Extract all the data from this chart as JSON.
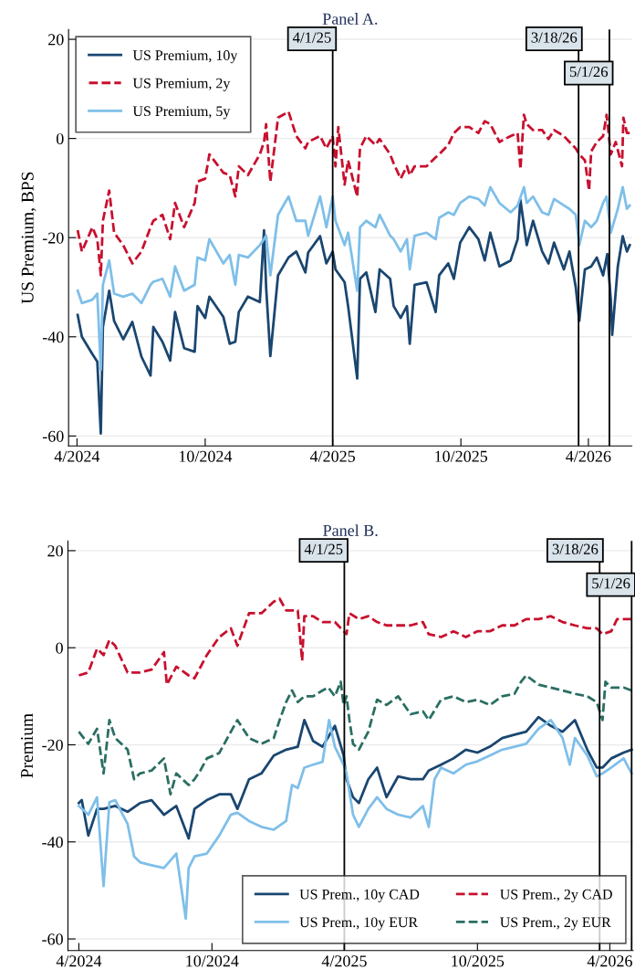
{
  "chart_data": [
    {
      "type": "line",
      "title": "Panel A.",
      "ylabel": "US Premium, BPS",
      "xlim": [
        "2024-03-20",
        "2026-06-02"
      ],
      "ylim": [
        -62,
        22
      ],
      "xticks": [
        {
          "value": "2024-04-01",
          "label": "4/2024"
        },
        {
          "value": "2024-10-01",
          "label": "10/2024"
        },
        {
          "value": "2025-04-01",
          "label": "4/2025"
        },
        {
          "value": "2025-10-01",
          "label": "10/2025"
        },
        {
          "value": "2026-04-01",
          "label": "4/2026"
        }
      ],
      "yticks": [
        20,
        0,
        -20,
        -40,
        -60
      ],
      "grid": "y",
      "legend": "top left",
      "ref_lines": [
        {
          "axis": "x",
          "value": "2025-04-01",
          "label": "4/1/25",
          "color": "#000000"
        },
        {
          "axis": "x",
          "value": "2026-03-18",
          "label": "3/18/26",
          "color": "#000000"
        },
        {
          "axis": "x",
          "value": "2026-05-01",
          "label": "5/1/26",
          "color": "#000000"
        }
      ],
      "series": [
        {
          "name": "US Premium, 10y",
          "color": "#1a4670",
          "line_style": "solid",
          "x": [
            "2024-04-02",
            "2024-04-08",
            "2024-04-23",
            "2024-04-30",
            "2024-05-05",
            "2024-05-08",
            "2024-05-17",
            "2024-05-24",
            "2024-06-06",
            "2024-06-19",
            "2024-07-02",
            "2024-07-15",
            "2024-07-19",
            "2024-08-01",
            "2024-08-12",
            "2024-08-19",
            "2024-09-01",
            "2024-09-16",
            "2024-09-20",
            "2024-10-01",
            "2024-10-07",
            "2024-10-27",
            "2024-11-05",
            "2024-11-13",
            "2024-11-18",
            "2024-12-01",
            "2024-12-18",
            "2024-12-24",
            "2024-12-27",
            "2025-01-02",
            "2025-01-13",
            "2025-01-28",
            "2025-02-08",
            "2025-02-21",
            "2025-02-25",
            "2025-03-14",
            "2025-03-23",
            "2025-04-01",
            "2025-04-05",
            "2025-04-18",
            "2025-04-23",
            "2025-05-06",
            "2025-05-10",
            "2025-05-19",
            "2025-06-01",
            "2025-06-07",
            "2025-06-22",
            "2025-06-27",
            "2025-07-07",
            "2025-07-16",
            "2025-07-20",
            "2025-07-27",
            "2025-08-13",
            "2025-08-26",
            "2025-08-31",
            "2025-09-13",
            "2025-09-21",
            "2025-09-30",
            "2025-10-13",
            "2025-10-26",
            "2025-11-04",
            "2025-11-12",
            "2025-11-25",
            "2025-12-11",
            "2025-12-21",
            "2025-12-25",
            "2026-01-03",
            "2026-01-12",
            "2026-01-25",
            "2026-02-03",
            "2026-02-11",
            "2026-02-25",
            "2026-03-05",
            "2026-03-14",
            "2026-03-19",
            "2026-03-27",
            "2026-04-05",
            "2026-04-13",
            "2026-04-22",
            "2026-04-28",
            "2026-05-03",
            "2026-05-05",
            "2026-05-13",
            "2026-05-20",
            "2026-05-26",
            "2026-05-30"
          ],
          "values": [
            -35.6,
            -40,
            -43.5,
            -45,
            -59.5,
            -38,
            -30.7,
            -36.8,
            -40.5,
            -37,
            -44,
            -47.8,
            -38,
            -41,
            -44.8,
            -35,
            -42.3,
            -43,
            -33.8,
            -36.2,
            -31.9,
            -36,
            -41.4,
            -41,
            -35,
            -31.9,
            -33,
            -18.5,
            -30,
            -43.9,
            -27.6,
            -24,
            -22.8,
            -27,
            -23,
            -19.7,
            -25.2,
            -22.8,
            -26.4,
            -29,
            -33.8,
            -48.4,
            -28.3,
            -27,
            -35,
            -26.4,
            -28.3,
            -33.8,
            -36.2,
            -33.8,
            -41.4,
            -29.5,
            -29,
            -35,
            -27.6,
            -25.2,
            -28.3,
            -21,
            -17.9,
            -20.3,
            -24.6,
            -19,
            -25.8,
            -24.6,
            -20.3,
            -12.4,
            -21.5,
            -16.6,
            -22.8,
            -25.2,
            -21,
            -26.4,
            -22.8,
            -30,
            -36.8,
            -26.4,
            -25.8,
            -24,
            -27.6,
            -23.3,
            -32.5,
            -39.6,
            -25.8,
            -19.7,
            -22.8,
            -21.5
          ]
        },
        {
          "name": "US Premium, 2y",
          "color": "#c8102e",
          "line_style": "dashed",
          "x": [
            "2024-04-02",
            "2024-04-08",
            "2024-04-23",
            "2024-04-30",
            "2024-05-05",
            "2024-05-08",
            "2024-05-17",
            "2024-05-24",
            "2024-06-06",
            "2024-06-19",
            "2024-07-02",
            "2024-07-15",
            "2024-07-19",
            "2024-08-01",
            "2024-08-12",
            "2024-08-19",
            "2024-09-01",
            "2024-09-16",
            "2024-09-20",
            "2024-10-01",
            "2024-10-07",
            "2024-10-27",
            "2024-11-05",
            "2024-11-13",
            "2024-11-18",
            "2024-12-01",
            "2024-12-18",
            "2024-12-24",
            "2024-12-27",
            "2025-01-02",
            "2025-01-13",
            "2025-01-28",
            "2025-02-08",
            "2025-02-21",
            "2025-02-25",
            "2025-03-14",
            "2025-03-23",
            "2025-04-01",
            "2025-04-05",
            "2025-04-09",
            "2025-04-18",
            "2025-04-23",
            "2025-05-06",
            "2025-05-10",
            "2025-05-19",
            "2025-06-01",
            "2025-06-07",
            "2025-06-22",
            "2025-06-27",
            "2025-07-07",
            "2025-07-16",
            "2025-07-20",
            "2025-07-27",
            "2025-08-13",
            "2025-08-26",
            "2025-08-31",
            "2025-09-13",
            "2025-09-21",
            "2025-09-30",
            "2025-10-13",
            "2025-10-26",
            "2025-11-04",
            "2025-11-12",
            "2025-11-25",
            "2025-12-11",
            "2025-12-21",
            "2025-12-25",
            "2025-12-30",
            "2026-01-03",
            "2026-01-12",
            "2026-01-25",
            "2026-02-03",
            "2026-02-11",
            "2026-02-25",
            "2026-03-05",
            "2026-03-14",
            "2026-03-19",
            "2026-03-27",
            "2026-04-02",
            "2026-04-05",
            "2026-04-13",
            "2026-04-22",
            "2026-04-27",
            "2026-05-03",
            "2026-05-10",
            "2026-05-19",
            "2026-05-21",
            "2026-05-26",
            "2026-05-30"
          ],
          "values": [
            -18.5,
            -22.8,
            -17.9,
            -20.3,
            -27.6,
            -16.6,
            -10.5,
            -19,
            -21.5,
            -25.2,
            -22.8,
            -17.9,
            -16.6,
            -15.4,
            -20.3,
            -13,
            -17.9,
            -13,
            -8.7,
            -8.1,
            -3.2,
            -6.9,
            -7.4,
            -11.7,
            -5.6,
            -7.4,
            -3.2,
            -0.7,
            2.9,
            -8.7,
            4.2,
            5.4,
            0.5,
            -2,
            -0.7,
            0.5,
            -2,
            0.5,
            -5.6,
            2.3,
            -9.3,
            -4.4,
            -11.7,
            -2,
            0.5,
            -1.3,
            -0.1,
            -3.2,
            -5,
            -8.1,
            -5.6,
            -7.4,
            -5.6,
            -5.6,
            -3.8,
            -3.2,
            -1.3,
            1.1,
            2.3,
            2.3,
            1.1,
            3.5,
            2.9,
            -0.7,
            0.5,
            1.1,
            -6.2,
            4.8,
            2.9,
            1.7,
            1.7,
            -0.1,
            1.7,
            0.5,
            -0.7,
            -2,
            -3.2,
            -4.4,
            -10.5,
            -2.6,
            -0.7,
            0.5,
            4.8,
            -3.2,
            -0.7,
            -5.6,
            4.2,
            1.1,
            1.1
          ]
        },
        {
          "name": "US Premium, 5y",
          "color": "#7fbfe9",
          "line_style": "solid",
          "x": [
            "2024-04-02",
            "2024-04-08",
            "2024-04-23",
            "2024-04-30",
            "2024-05-05",
            "2024-05-08",
            "2024-05-17",
            "2024-05-24",
            "2024-06-06",
            "2024-06-19",
            "2024-07-02",
            "2024-07-15",
            "2024-07-19",
            "2024-08-01",
            "2024-08-12",
            "2024-08-19",
            "2024-09-01",
            "2024-09-16",
            "2024-09-20",
            "2024-10-01",
            "2024-10-07",
            "2024-10-27",
            "2024-11-05",
            "2024-11-13",
            "2024-11-18",
            "2024-12-01",
            "2024-12-18",
            "2024-12-24",
            "2024-12-27",
            "2025-01-02",
            "2025-01-13",
            "2025-01-28",
            "2025-02-08",
            "2025-02-21",
            "2025-02-25",
            "2025-03-14",
            "2025-03-23",
            "2025-04-01",
            "2025-04-05",
            "2025-04-18",
            "2025-04-23",
            "2025-05-06",
            "2025-05-10",
            "2025-05-19",
            "2025-06-01",
            "2025-06-07",
            "2025-06-22",
            "2025-06-27",
            "2025-07-07",
            "2025-07-16",
            "2025-07-20",
            "2025-07-27",
            "2025-08-13",
            "2025-08-26",
            "2025-08-31",
            "2025-09-13",
            "2025-09-21",
            "2025-09-30",
            "2025-10-13",
            "2025-10-26",
            "2025-11-04",
            "2025-11-12",
            "2025-11-25",
            "2025-12-11",
            "2025-12-21",
            "2025-12-30",
            "2026-01-03",
            "2026-01-12",
            "2026-01-25",
            "2026-02-03",
            "2026-02-11",
            "2026-02-25",
            "2026-03-05",
            "2026-03-14",
            "2026-03-19",
            "2026-03-27",
            "2026-04-05",
            "2026-04-13",
            "2026-04-22",
            "2026-04-27",
            "2026-05-03",
            "2026-05-13",
            "2026-05-20",
            "2026-05-26",
            "2026-05-30"
          ],
          "values": [
            -30.7,
            -33.2,
            -32.5,
            -31.3,
            -46.6,
            -29.5,
            -24.6,
            -31.3,
            -31.9,
            -31.3,
            -33.2,
            -29.5,
            -28.9,
            -28.3,
            -31.9,
            -25.8,
            -30.7,
            -29.5,
            -24,
            -24.6,
            -20.3,
            -25.2,
            -23.5,
            -29.5,
            -23.5,
            -24,
            -21.5,
            -20.3,
            -19.6,
            -27.6,
            -15.4,
            -11.7,
            -16.6,
            -16.6,
            -19.6,
            -11.7,
            -17.9,
            -11.7,
            -16.6,
            -21.5,
            -19,
            -30.7,
            -17.9,
            -16.6,
            -17.9,
            -15.4,
            -19.6,
            -20.3,
            -22.8,
            -20.3,
            -26.4,
            -19.6,
            -19,
            -20.3,
            -16,
            -14.9,
            -15.4,
            -13,
            -11.7,
            -12.2,
            -13.5,
            -9.8,
            -13,
            -14.9,
            -13.5,
            -9.8,
            -13,
            -11.7,
            -14.9,
            -15.4,
            -12.2,
            -13.5,
            -14.2,
            -15.4,
            -21.5,
            -16.6,
            -17.9,
            -16.6,
            -13,
            -11.7,
            -19,
            -14.2,
            -9.8,
            -14.2,
            -13.5
          ]
        }
      ]
    },
    {
      "type": "line",
      "title": "Panel B.",
      "ylabel": "Premium",
      "xlim": [
        "2024-03-17",
        "2026-05-03"
      ],
      "ylim": [
        -62.4,
        22
      ],
      "xticks": [
        {
          "value": "2024-04-01",
          "label": "4/2024"
        },
        {
          "value": "2024-10-01",
          "label": "10/2024"
        },
        {
          "value": "2025-04-01",
          "label": "4/2025"
        },
        {
          "value": "2025-10-01",
          "label": "10/2025"
        },
        {
          "value": "2026-04-01",
          "label": "4/2026"
        }
      ],
      "yticks": [
        20,
        0,
        -20,
        -40,
        -60
      ],
      "grid": "y",
      "legend": "bottom right",
      "ref_lines": [
        {
          "axis": "x",
          "value": "2025-04-01",
          "label": "4/1/25",
          "color": "#000000"
        },
        {
          "axis": "x",
          "value": "2026-03-18",
          "label": "3/18/26",
          "color": "#000000"
        },
        {
          "axis": "x",
          "value": "2026-05-01",
          "label": "5/1/26",
          "color": "#000000"
        }
      ],
      "series": [
        {
          "name": "US Prem., 10y CAD",
          "color": "#1a4670",
          "line_style": "solid",
          "x": [
            "2024-04-01",
            "2024-04-05",
            "2024-04-14",
            "2024-04-26",
            "2024-05-05",
            "2024-05-21",
            "2024-06-07",
            "2024-06-24",
            "2024-07-10",
            "2024-07-27",
            "2024-08-13",
            "2024-08-30",
            "2024-09-07",
            "2024-09-24",
            "2024-10-11",
            "2024-10-27",
            "2024-11-05",
            "2024-11-21",
            "2024-12-08",
            "2024-12-25",
            "2025-01-11",
            "2025-01-27",
            "2025-02-05",
            "2025-02-17",
            "2025-03-02",
            "2025-03-19",
            "2025-03-31",
            "2025-04-04",
            "2025-04-13",
            "2025-04-21",
            "2025-05-04",
            "2025-05-16",
            "2025-05-29",
            "2025-06-14",
            "2025-07-01",
            "2025-07-18",
            "2025-07-26",
            "2025-08-12",
            "2025-08-29",
            "2025-09-15",
            "2025-10-01",
            "2025-10-18",
            "2025-11-04",
            "2025-11-21",
            "2025-12-07",
            "2025-12-24",
            "2026-01-10",
            "2026-01-26",
            "2026-02-12",
            "2026-03-01",
            "2026-03-14",
            "2026-03-22",
            "2026-04-03",
            "2026-04-20",
            "2026-05-01"
          ],
          "values": [
            -32,
            -31.4,
            -38.7,
            -33.2,
            -33.2,
            -32.6,
            -33.8,
            -32,
            -31.4,
            -34.4,
            -32.6,
            -39.3,
            -33.2,
            -31.4,
            -30.2,
            -30.2,
            -33.2,
            -27.1,
            -25.9,
            -22.2,
            -21,
            -20.4,
            -14.9,
            -19.2,
            -20.4,
            -16.1,
            -22.2,
            -27.1,
            -30.8,
            -32,
            -27.1,
            -24.7,
            -30.8,
            -26.5,
            -27.1,
            -27.1,
            -25.3,
            -24.1,
            -22.8,
            -21,
            -21.6,
            -20.4,
            -18.6,
            -17.9,
            -17.3,
            -14.3,
            -16.1,
            -17.3,
            -14.9,
            -21,
            -24.7,
            -24.7,
            -22.8,
            -21.6,
            -21
          ]
        },
        {
          "name": "US Prem., 10y EUR",
          "color": "#7fbfe9",
          "line_style": "solid",
          "x": [
            "2024-04-01",
            "2024-04-14",
            "2024-04-26",
            "2024-05-05",
            "2024-05-13",
            "2024-05-21",
            "2024-06-07",
            "2024-06-16",
            "2024-06-24",
            "2024-07-10",
            "2024-07-27",
            "2024-08-13",
            "2024-08-26",
            "2024-08-30",
            "2024-09-07",
            "2024-09-24",
            "2024-10-11",
            "2024-10-27",
            "2024-11-05",
            "2024-11-21",
            "2024-12-08",
            "2024-12-25",
            "2025-01-11",
            "2025-01-19",
            "2025-01-27",
            "2025-02-05",
            "2025-02-17",
            "2025-03-02",
            "2025-03-11",
            "2025-03-19",
            "2025-03-31",
            "2025-04-04",
            "2025-04-13",
            "2025-04-21",
            "2025-05-04",
            "2025-05-16",
            "2025-05-29",
            "2025-06-14",
            "2025-07-01",
            "2025-07-18",
            "2025-07-26",
            "2025-08-03",
            "2025-08-12",
            "2025-08-29",
            "2025-09-15",
            "2025-10-01",
            "2025-10-18",
            "2025-11-04",
            "2025-11-21",
            "2025-12-07",
            "2025-12-24",
            "2026-01-10",
            "2026-01-26",
            "2026-02-05",
            "2026-02-12",
            "2026-03-01",
            "2026-03-14",
            "2026-03-22",
            "2026-04-03",
            "2026-04-20",
            "2026-05-01"
          ],
          "values": [
            -32.6,
            -34.4,
            -30.8,
            -49.1,
            -31.8,
            -31.4,
            -36.3,
            -43,
            -44.2,
            -44.8,
            -45.4,
            -42.4,
            -55.8,
            -45.4,
            -43,
            -42.4,
            -38.7,
            -34.4,
            -34,
            -35.7,
            -36.9,
            -37.5,
            -35.7,
            -28.3,
            -28.9,
            -24.7,
            -24.1,
            -23.5,
            -14.9,
            -20.4,
            -24.1,
            -25.9,
            -34.4,
            -36.9,
            -33.2,
            -30.8,
            -33.2,
            -34.4,
            -35,
            -32.6,
            -36.9,
            -27.1,
            -24.7,
            -25.9,
            -24.1,
            -23.4,
            -22.2,
            -21,
            -20.4,
            -19.8,
            -16.7,
            -14.9,
            -18.6,
            -24.1,
            -18.6,
            -22.2,
            -26.5,
            -25.9,
            -24.7,
            -22.8,
            -25.9
          ]
        },
        {
          "name": "US Prem., 2y CAD",
          "color": "#c8102e",
          "line_style": "dashed",
          "x": [
            "2024-04-01",
            "2024-04-14",
            "2024-04-26",
            "2024-05-05",
            "2024-05-13",
            "2024-05-21",
            "2024-06-07",
            "2024-06-24",
            "2024-07-10",
            "2024-07-27",
            "2024-07-31",
            "2024-08-13",
            "2024-08-30",
            "2024-09-07",
            "2024-09-24",
            "2024-10-11",
            "2024-10-27",
            "2024-11-05",
            "2024-11-21",
            "2024-12-08",
            "2024-12-25",
            "2025-01-02",
            "2025-01-11",
            "2025-01-27",
            "2025-02-02",
            "2025-02-05",
            "2025-02-17",
            "2025-03-02",
            "2025-03-19",
            "2025-03-31",
            "2025-04-04",
            "2025-04-08",
            "2025-04-21",
            "2025-05-04",
            "2025-05-16",
            "2025-05-29",
            "2025-06-14",
            "2025-07-01",
            "2025-07-18",
            "2025-07-26",
            "2025-08-12",
            "2025-08-29",
            "2025-09-15",
            "2025-10-01",
            "2025-10-18",
            "2025-11-04",
            "2025-11-21",
            "2025-12-07",
            "2025-12-24",
            "2026-01-10",
            "2026-01-26",
            "2026-02-12",
            "2026-03-01",
            "2026-03-14",
            "2026-03-22",
            "2026-04-03",
            "2026-04-11",
            "2026-05-01"
          ],
          "values": [
            -5.7,
            -5.1,
            -0.2,
            -1.5,
            1.6,
            0.4,
            -5.1,
            -5.1,
            -4.5,
            -0.9,
            -7.6,
            -3.9,
            -5.7,
            -6.3,
            -1.5,
            2.2,
            4,
            0.4,
            7.1,
            7.1,
            9.5,
            10.1,
            7.7,
            7.7,
            -2.7,
            6.5,
            6.5,
            5.3,
            5.3,
            3.4,
            2.8,
            7.1,
            5.9,
            6.5,
            5.3,
            4.6,
            4.6,
            4.6,
            5.3,
            2.8,
            2.2,
            3.4,
            2.2,
            3.4,
            3.4,
            4.6,
            4.6,
            5.9,
            5.9,
            6.5,
            5.3,
            4.6,
            4,
            4,
            2.8,
            3.4,
            5.9,
            5.9
          ]
        },
        {
          "name": "US Prem., 2y EUR",
          "color": "#2a6e62",
          "line_style": "dashed",
          "x": [
            "2024-04-01",
            "2024-04-14",
            "2024-04-26",
            "2024-05-05",
            "2024-05-13",
            "2024-05-21",
            "2024-06-07",
            "2024-06-16",
            "2024-06-24",
            "2024-07-10",
            "2024-07-27",
            "2024-08-05",
            "2024-08-13",
            "2024-08-30",
            "2024-09-07",
            "2024-09-15",
            "2024-09-24",
            "2024-10-11",
            "2024-10-27",
            "2024-11-05",
            "2024-11-21",
            "2024-12-08",
            "2024-12-25",
            "2025-01-02",
            "2025-01-11",
            "2025-01-19",
            "2025-01-27",
            "2025-02-05",
            "2025-02-17",
            "2025-03-02",
            "2025-03-10",
            "2025-03-19",
            "2025-03-27",
            "2025-03-31",
            "2025-04-04",
            "2025-04-08",
            "2025-04-13",
            "2025-04-21",
            "2025-05-04",
            "2025-05-16",
            "2025-05-29",
            "2025-06-14",
            "2025-07-01",
            "2025-07-18",
            "2025-07-26",
            "2025-08-12",
            "2025-08-29",
            "2025-09-15",
            "2025-10-01",
            "2025-10-18",
            "2025-11-04",
            "2025-11-21",
            "2025-11-30",
            "2025-12-07",
            "2025-12-24",
            "2026-01-10",
            "2026-01-26",
            "2026-02-12",
            "2026-03-01",
            "2026-03-14",
            "2026-03-22",
            "2026-03-26",
            "2026-04-03",
            "2026-04-20",
            "2026-05-01"
          ],
          "values": [
            -17.3,
            -19.8,
            -16.7,
            -25.9,
            -14.9,
            -18.6,
            -21,
            -27.1,
            -25.9,
            -25.3,
            -22.8,
            -30.2,
            -25.9,
            -28.3,
            -27.1,
            -25.3,
            -22.8,
            -21.7,
            -17.3,
            -14.9,
            -18.6,
            -19.8,
            -18.6,
            -14.9,
            -11.2,
            -8.8,
            -11.2,
            -10,
            -10,
            -8.8,
            -8.2,
            -10,
            -7,
            -11.8,
            -10,
            -14.9,
            -19.8,
            -21,
            -17.3,
            -10.7,
            -11.8,
            -10,
            -13.7,
            -13.1,
            -14.9,
            -10.7,
            -10,
            -11.2,
            -10.7,
            -11.8,
            -10,
            -9.5,
            -7,
            -5.7,
            -7.6,
            -8.2,
            -8.8,
            -9.5,
            -10,
            -11.2,
            -14.9,
            -7,
            -8.2,
            -8.2,
            -8.8
          ]
        }
      ]
    }
  ]
}
